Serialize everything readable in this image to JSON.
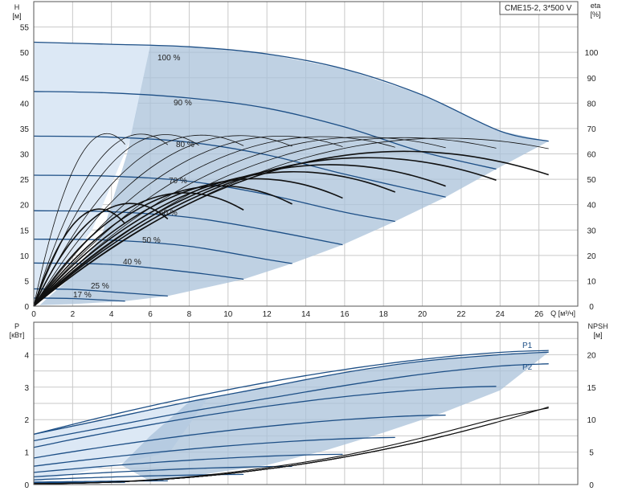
{
  "title": "CME15-2, 3*500 V",
  "top": {
    "y_left_label": "H",
    "y_left_unit": "[м]",
    "y_right_label": "eta",
    "y_right_unit": "[%]",
    "x_label": "Q [м³/ч]",
    "x_ticks": [
      "0",
      "2",
      "4",
      "6",
      "8",
      "10",
      "12",
      "14",
      "16",
      "18",
      "20",
      "22",
      "24",
      "26"
    ],
    "y_left_ticks": [
      "0",
      "5",
      "10",
      "15",
      "20",
      "25",
      "30",
      "35",
      "40",
      "45",
      "50",
      "55"
    ],
    "y_right_ticks": [
      "0",
      "10",
      "20",
      "30",
      "40",
      "50",
      "60",
      "70",
      "80",
      "90",
      "100"
    ]
  },
  "bottom": {
    "y_left_label": "P",
    "y_left_unit": "[кВт]",
    "y_right_label": "NPSH",
    "y_right_unit": "[м]",
    "y_left_ticks": [
      "0",
      "1",
      "2",
      "3",
      "4"
    ],
    "y_right_ticks": [
      "0",
      "5",
      "10",
      "15",
      "20"
    ],
    "p1_label": "P1",
    "p2_label": "P2"
  },
  "colors": {
    "curve": "#1d4f86",
    "region": "#a9c1da",
    "region_light": "#dce8f5"
  },
  "chart_data": [
    {
      "type": "line",
      "title": "CME15-2, 3*500 V",
      "xlabel": "Q [м³/ч]",
      "ylabel": "H [м]",
      "y2label": "eta [%]",
      "xlim": [
        0,
        28
      ],
      "ylim": [
        0,
        60
      ],
      "y2lim": [
        0,
        120
      ],
      "grid": true,
      "series": [
        {
          "name": "100 %",
          "x": [
            0,
            4,
            8,
            12,
            16,
            20,
            24,
            26.5
          ],
          "y": [
            52,
            51.6,
            51.1,
            49.7,
            46.7,
            41.6,
            34.5,
            32.5
          ]
        },
        {
          "name": "90 %",
          "x": [
            0,
            4,
            8,
            12,
            16,
            20,
            23.8
          ],
          "y": [
            42.3,
            42,
            41,
            39,
            35.3,
            30.4,
            27
          ]
        },
        {
          "name": "80 %",
          "x": [
            0,
            4,
            8,
            12,
            16,
            21.2
          ],
          "y": [
            33.5,
            33.3,
            32.3,
            29.8,
            26,
            21.5
          ]
        },
        {
          "name": "70 %",
          "x": [
            0,
            4,
            8,
            12,
            16,
            18.6
          ],
          "y": [
            25.8,
            25.6,
            24.6,
            22,
            18.5,
            16.7
          ]
        },
        {
          "name": "60 %",
          "x": [
            0,
            4,
            8,
            12,
            15.9
          ],
          "y": [
            18.8,
            18.6,
            17.5,
            15,
            12.1
          ]
        },
        {
          "name": "50 %",
          "x": [
            0,
            4,
            8,
            12,
            13.3
          ],
          "y": [
            13.2,
            13,
            11.8,
            9.2,
            8.4
          ]
        },
        {
          "name": "40 %",
          "x": [
            0,
            4,
            8,
            10.8
          ],
          "y": [
            8.5,
            8.2,
            6.7,
            5.3
          ]
        },
        {
          "name": "25 %",
          "x": [
            0,
            2,
            4,
            6.9
          ],
          "y": [
            3.4,
            3.3,
            2.8,
            2
          ]
        },
        {
          "name": "17 %",
          "x": [
            0,
            2,
            4.7
          ],
          "y": [
            1.6,
            1.5,
            1
          ]
        }
      ],
      "annotations": [
        "100 %",
        "90 %",
        "80 %",
        "70 %",
        "60 %",
        "50 %",
        "40 %",
        "25 %",
        "17 %"
      ]
    },
    {
      "type": "line",
      "ylabel": "P [кВт]",
      "y2label": "NPSH [м]",
      "xlim": [
        0,
        28
      ],
      "ylim": [
        0,
        5
      ],
      "y2lim": [
        0,
        25
      ],
      "grid": true,
      "series": [
        {
          "name": "P1",
          "x": [
            0,
            4,
            8,
            12,
            16,
            20,
            24,
            26.5
          ],
          "y": [
            1.55,
            2.05,
            2.55,
            3.0,
            3.45,
            3.8,
            4.0,
            4.08
          ]
        },
        {
          "name": "P2",
          "x": [
            0,
            4,
            8,
            12,
            16,
            20,
            24,
            26.5
          ],
          "y": [
            1.35,
            1.8,
            2.25,
            2.65,
            3.05,
            3.4,
            3.65,
            3.72
          ]
        },
        {
          "name": "NPSH",
          "x": [
            0,
            4,
            8,
            12,
            16,
            20,
            24,
            26.5
          ],
          "y": [
            0.1,
            0.4,
            1.2,
            2.6,
            4.5,
            7.2,
            10.3,
            11.8
          ]
        }
      ]
    }
  ]
}
